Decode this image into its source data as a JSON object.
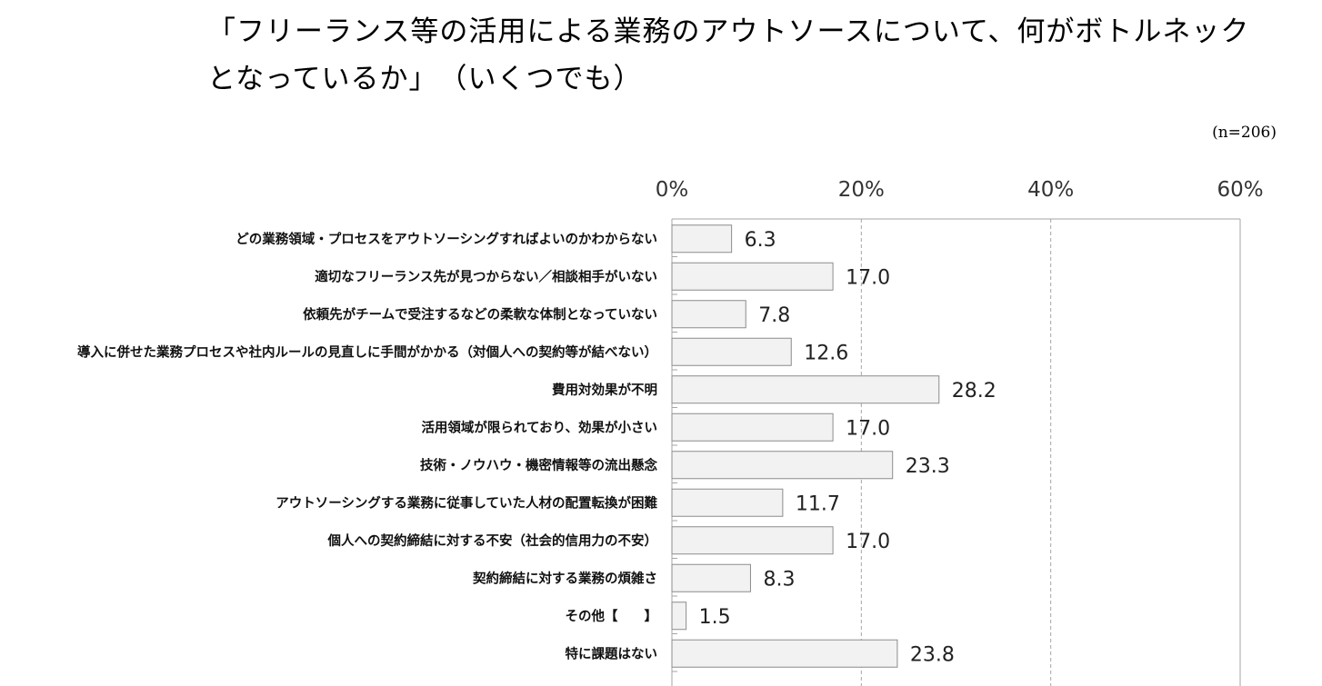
{
  "header": {
    "title_line1": "「フリーランス等の活用による業務のアウトソースについて、何がボトルネック",
    "title_line2": "となっているか」　（いくつでも）",
    "sample_note": "(n=206)"
  },
  "chart_data": {
    "type": "bar",
    "orientation": "horizontal",
    "title": "「フリーランス等の活用による業務のアウトソースについて、何がボトルネックとなっているか」（いくつでも）",
    "xlim": [
      0,
      60
    ],
    "ticks": [
      0,
      20,
      40,
      60
    ],
    "tick_labels": [
      "0%",
      "20%",
      "40%",
      "60%"
    ],
    "tick_axis_position": "top",
    "grid": "vertical dashed",
    "categories": [
      "どの業務領域・プロセスをアウトソーシングすればよいのかわからない",
      "適切なフリーランス先が見つからない／相談相手がいない",
      "依頼先がチームで受注するなどの柔軟な体制となっていない",
      "導入に併せた業務プロセスや社内ルールの見直しに手間がかかる（対個人への契約等が結べない）",
      "費用対効果が不明",
      "活用領域が限られており、効果が小さい",
      "技術・ノウハウ・機密情報等の流出懸念",
      "アウトソーシングする業務に従事していた人材の配置転換が困難",
      "個人への契約締結に対する不安（社会的信用力の不安）",
      "契約締結に対する業務の煩雑さ",
      "その他【　　】",
      "特に課題はない"
    ],
    "values": [
      6.3,
      17.0,
      7.8,
      12.6,
      28.2,
      17.0,
      23.3,
      11.7,
      17.0,
      8.3,
      1.5,
      23.8
    ],
    "value_labels": [
      "6.3",
      "17.0",
      "7.8",
      "12.6",
      "28.2",
      "17.0",
      "23.3",
      "11.7",
      "17.0",
      "8.3",
      "1.5",
      "23.8"
    ],
    "colors": {
      "bar_fill": "#f2f2f2",
      "bar_stroke": "#8c8c8c",
      "axis": "#a6a6a6",
      "grid": "#a6a6a6"
    }
  }
}
